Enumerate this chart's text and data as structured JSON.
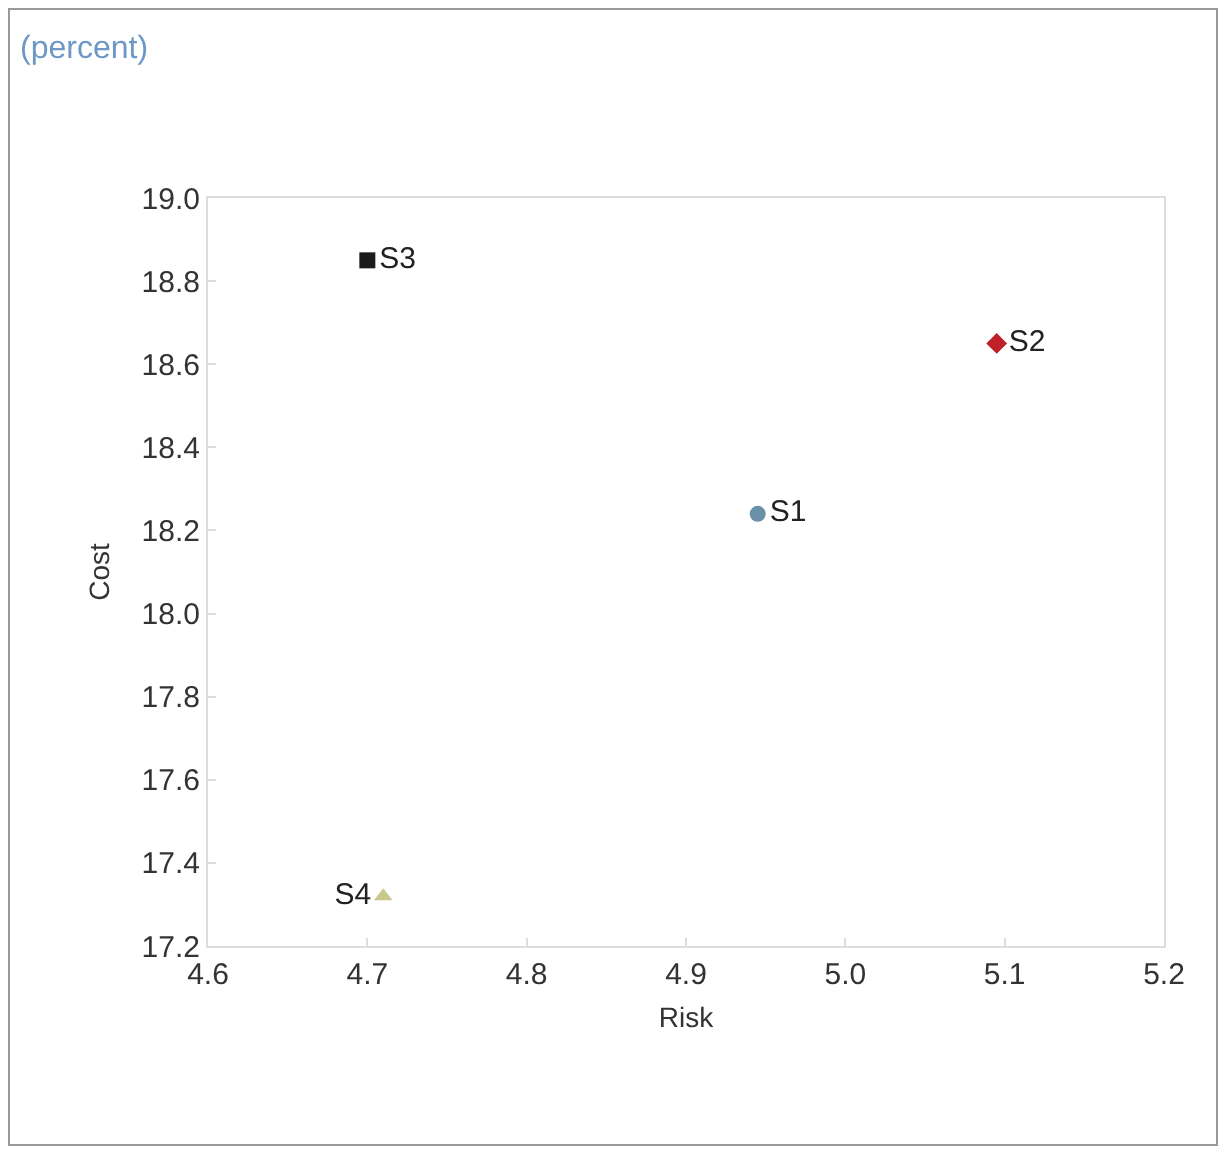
{
  "chart_data": {
    "type": "scatter",
    "subtitle": "(percent)",
    "xlabel": "Risk",
    "ylabel": "Cost",
    "xlim": [
      4.6,
      5.2
    ],
    "xticks": [
      4.6,
      4.7,
      4.8,
      4.9,
      {
        "value": 5.0,
        "label": "5.0"
      },
      5.1,
      5.2
    ],
    "ylim": [
      17.2,
      19.0
    ],
    "yticks": [
      17.2,
      17.4,
      17.6,
      17.8,
      {
        "value": 18.0,
        "label": "18.0"
      },
      18.2,
      18.4,
      18.6,
      18.8,
      {
        "value": 19.0,
        "label": "19.0"
      }
    ],
    "grid": false,
    "legend": false,
    "series": [
      {
        "name": "S1",
        "color": "#6a8fa8",
        "marker": "circle",
        "x": [
          4.945
        ],
        "values": [
          18.24
        ]
      },
      {
        "name": "S2",
        "color": "#c0202a",
        "marker": "diamond",
        "x": [
          5.095
        ],
        "values": [
          18.65
        ]
      },
      {
        "name": "S3",
        "color": "#1a1a1a",
        "marker": "square",
        "x": [
          4.7
        ],
        "values": [
          18.85
        ]
      },
      {
        "name": "S4",
        "color": "#c8c88a",
        "marker": "triangle",
        "x": [
          4.71
        ],
        "values": [
          17.32
        ]
      }
    ]
  }
}
